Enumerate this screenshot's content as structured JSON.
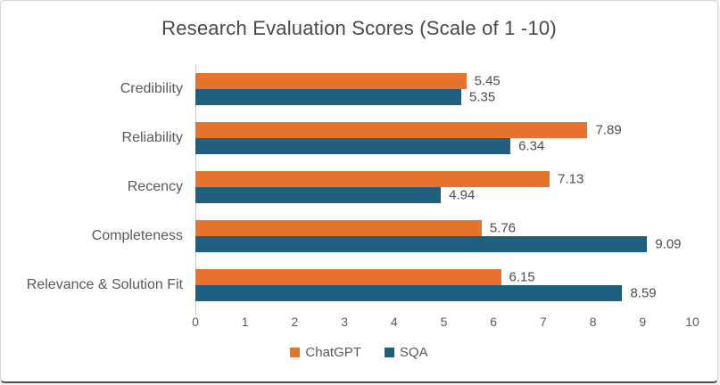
{
  "chart_data": {
    "type": "bar",
    "orientation": "horizontal",
    "title": "Research Evaluation Scores (Scale of 1 -10)",
    "categories": [
      "Credibility",
      "Reliability",
      "Recency",
      "Completeness",
      "Relevance & Solution Fit"
    ],
    "series": [
      {
        "name": "ChatGPT",
        "color": "#E6732E",
        "values": [
          5.45,
          7.89,
          7.13,
          5.76,
          6.15
        ]
      },
      {
        "name": "SQA",
        "color": "#1F5F80",
        "values": [
          5.35,
          6.34,
          4.94,
          9.09,
          8.59
        ]
      }
    ],
    "xlabel": "",
    "ylabel": "",
    "xlim": [
      0,
      10
    ],
    "x_ticks": [
      0,
      1,
      2,
      3,
      4,
      5,
      6,
      7,
      8,
      9,
      10
    ],
    "value_labels": true,
    "value_label_decimals": 2,
    "grid": false,
    "legend_position": "bottom"
  },
  "colors": {
    "title_text": "#474747",
    "label_text": "#595959",
    "axis_line": "#C6C6C6"
  }
}
